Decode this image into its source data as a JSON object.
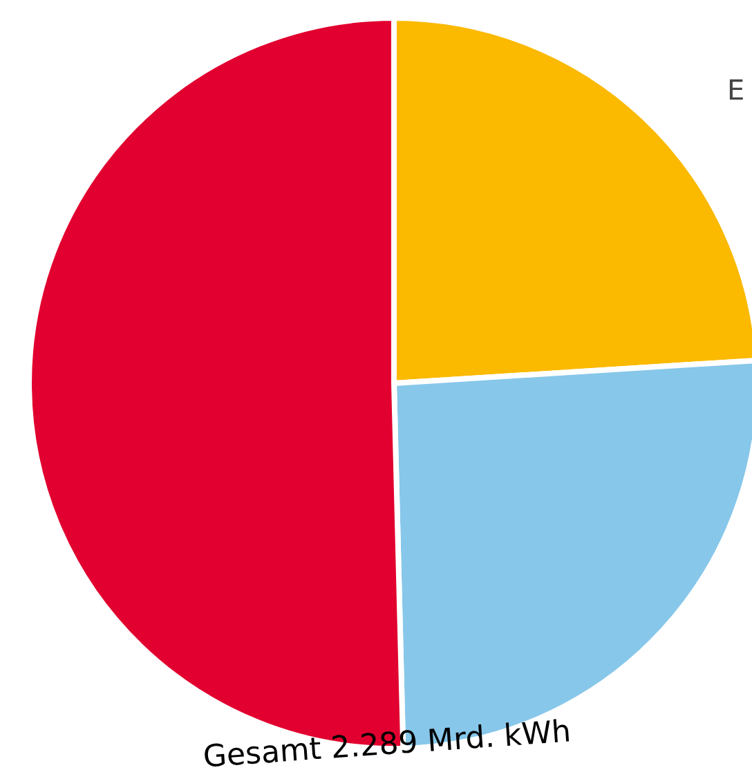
{
  "chart_data": {
    "type": "pie",
    "categories": [
      null,
      null,
      null
    ],
    "values": [
      24,
      25.6,
      50.4
    ],
    "colors": [
      "#fbb900",
      "#87c7ea",
      "#e1002f"
    ],
    "annotations": [
      "Gesamt 2.289 Mrd. kWh",
      "E"
    ]
  }
}
